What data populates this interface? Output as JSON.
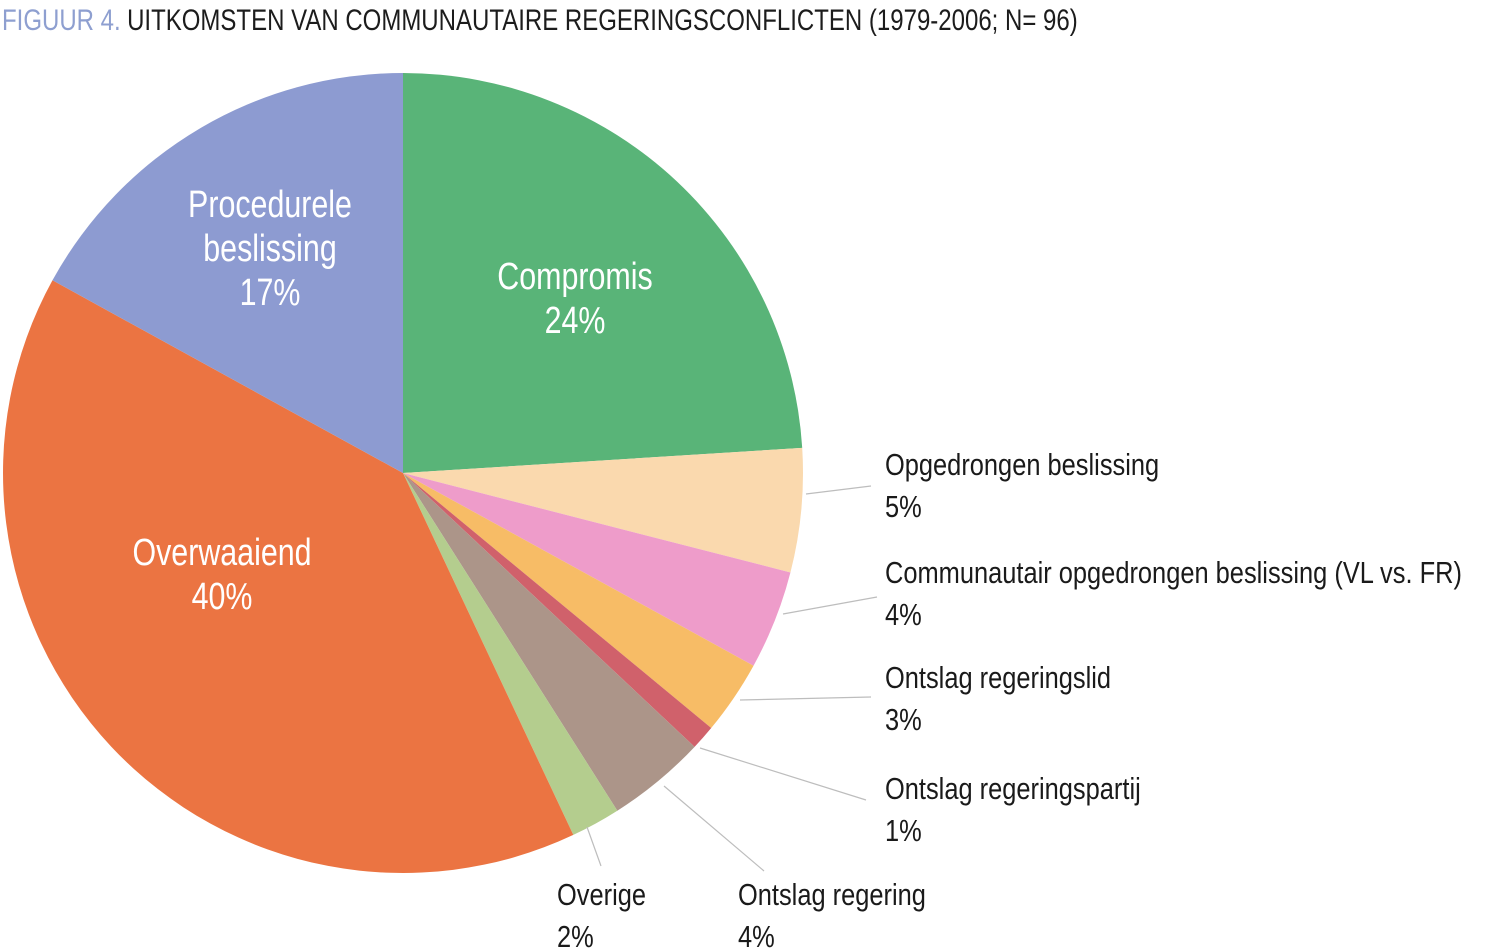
{
  "figure": {
    "label": "FIGUUR 4.",
    "title": "UITKOMSTEN VAN COMMUNAUTAIRE REGERINGSCONFLICTEN (1979-2006; N= 96)"
  },
  "chart_data": {
    "type": "pie",
    "title": "Uitkomsten van communautaire regeringsconflicten (1979-2006; N= 96)",
    "unit": "percent",
    "total_n": 96,
    "start_angle_deg": 0,
    "direction": "clockwise",
    "legend_position": "labels-on-and-around-pie",
    "slices": [
      {
        "id": "compromis",
        "label": "Compromis",
        "value": 24,
        "pct_label": "24%",
        "color": "#59b478",
        "label_placement": "inside"
      },
      {
        "id": "opgedrongen-beslissing",
        "label": "Opgedrongen beslissing",
        "value": 5,
        "pct_label": "5%",
        "color": "#fad9ae",
        "label_placement": "outside"
      },
      {
        "id": "communautair-opgedrongen-beslissing",
        "label": "Communautair opgedrongen beslissing (VL vs. FR)",
        "value": 4,
        "pct_label": "4%",
        "color": "#ee9cca",
        "label_placement": "outside"
      },
      {
        "id": "ontslag-regeringslid",
        "label": "Ontslag regeringslid",
        "value": 3,
        "pct_label": "3%",
        "color": "#f7bc66",
        "label_placement": "outside"
      },
      {
        "id": "ontslag-regeringspartij",
        "label": "Ontslag regeringspartij",
        "value": 1,
        "pct_label": "1%",
        "color": "#d0616b",
        "label_placement": "outside"
      },
      {
        "id": "ontslag-regering",
        "label": "Ontslag regering",
        "value": 4,
        "pct_label": "4%",
        "color": "#ac9589",
        "label_placement": "outside"
      },
      {
        "id": "overige",
        "label": "Overige",
        "value": 2,
        "pct_label": "2%",
        "color": "#b4cd8e",
        "label_placement": "outside"
      },
      {
        "id": "overwaaiend",
        "label": "Overwaaiend",
        "value": 40,
        "pct_label": "40%",
        "color": "#eb7442",
        "label_placement": "inside"
      },
      {
        "id": "procedurele-beslissing",
        "label": "Procedurele beslissing",
        "value": 17,
        "pct_label": "17%",
        "color": "#8d9bd1",
        "label_placement": "inside"
      }
    ],
    "colors": {
      "figure_label": "#8e9fd0",
      "title_text": "#1c1c1c",
      "inside_label_text": "#ffffff",
      "outside_label_text": "#1a1a1a",
      "leader_line": "#bdbdbd",
      "background": "#ffffff"
    }
  }
}
